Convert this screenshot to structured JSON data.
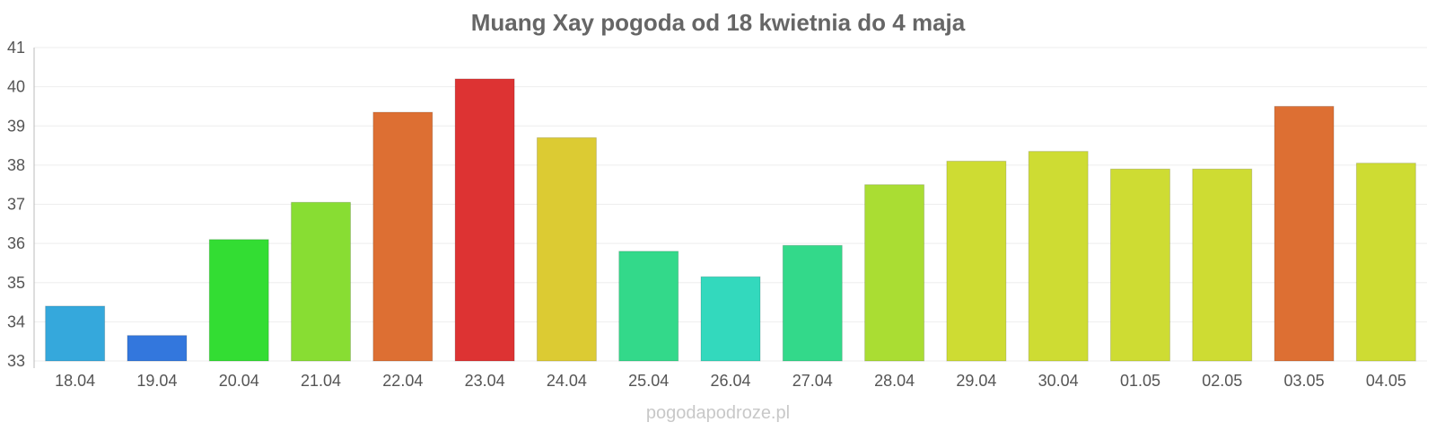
{
  "chart_data": {
    "type": "bar",
    "title": "Muang Xay pogoda od 18 kwietnia do 4 maja",
    "xlabel": "",
    "ylabel": "",
    "ylim": [
      33,
      41
    ],
    "yticks": [
      33,
      34,
      35,
      36,
      37,
      38,
      39,
      40,
      41
    ],
    "grid": true,
    "categories": [
      "18.04",
      "19.04",
      "20.04",
      "21.04",
      "22.04",
      "23.04",
      "24.04",
      "25.04",
      "26.04",
      "27.04",
      "28.04",
      "29.04",
      "30.04",
      "01.05",
      "02.05",
      "03.05",
      "04.05"
    ],
    "values": [
      34.4,
      33.65,
      36.1,
      37.05,
      39.35,
      40.2,
      38.7,
      35.8,
      35.15,
      35.95,
      37.5,
      38.1,
      38.35,
      37.9,
      37.9,
      39.5,
      38.05
    ],
    "colors": [
      "#35a8dc",
      "#3377dd",
      "#33dd33",
      "#88dd33",
      "#dd6f33",
      "#dd3333",
      "#dccb33",
      "#33d98a",
      "#33d9bd",
      "#33d98a",
      "#aadd33",
      "#cedc33",
      "#cedc33",
      "#cedc33",
      "#cedc33",
      "#dd6f33",
      "#cedc33"
    ]
  },
  "footer": {
    "watermark": "pogodapodroze.pl"
  }
}
